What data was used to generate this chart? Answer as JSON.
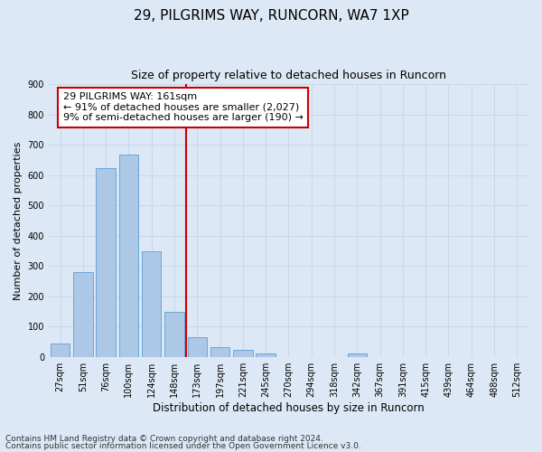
{
  "title": "29, PILGRIMS WAY, RUNCORN, WA7 1XP",
  "subtitle": "Size of property relative to detached houses in Runcorn",
  "xlabel": "Distribution of detached houses by size in Runcorn",
  "ylabel": "Number of detached properties",
  "bin_labels": [
    "27sqm",
    "51sqm",
    "76sqm",
    "100sqm",
    "124sqm",
    "148sqm",
    "173sqm",
    "197sqm",
    "221sqm",
    "245sqm",
    "270sqm",
    "294sqm",
    "318sqm",
    "342sqm",
    "367sqm",
    "391sqm",
    "415sqm",
    "439sqm",
    "464sqm",
    "488sqm",
    "512sqm"
  ],
  "bar_values": [
    44,
    280,
    623,
    668,
    348,
    148,
    65,
    32,
    22,
    12,
    0,
    0,
    0,
    10,
    0,
    0,
    0,
    0,
    0,
    0,
    0
  ],
  "bar_color": "#adc8e6",
  "bar_edge_color": "#5a9fd4",
  "vline_color": "#cc0000",
  "annotation_text": "29 PILGRIMS WAY: 161sqm\n← 91% of detached houses are smaller (2,027)\n9% of semi-detached houses are larger (190) →",
  "annotation_box_color": "#ffffff",
  "annotation_box_edge_color": "#cc0000",
  "ylim": [
    0,
    900
  ],
  "yticks": [
    0,
    100,
    200,
    300,
    400,
    500,
    600,
    700,
    800,
    900
  ],
  "grid_color": "#c8d8e8",
  "background_color": "#dce8f5",
  "plot_bg_color": "#dce8f5",
  "footer_line1": "Contains HM Land Registry data © Crown copyright and database right 2024.",
  "footer_line2": "Contains public sector information licensed under the Open Government Licence v3.0.",
  "title_fontsize": 11,
  "subtitle_fontsize": 9,
  "xlabel_fontsize": 8.5,
  "ylabel_fontsize": 8,
  "tick_fontsize": 7,
  "annotation_fontsize": 8,
  "footer_fontsize": 6.5
}
